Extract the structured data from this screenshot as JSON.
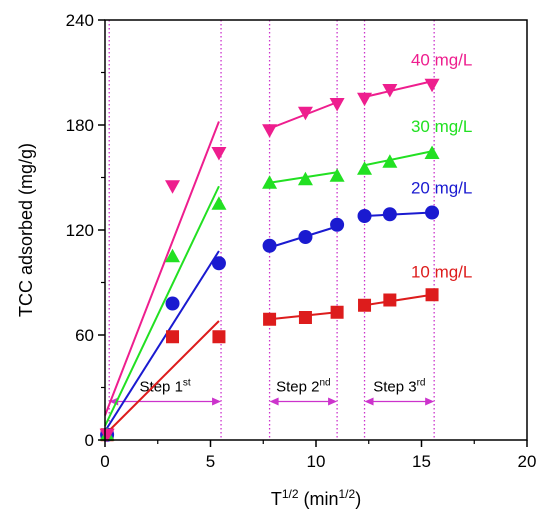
{
  "chart_data": {
    "type": "scatter",
    "xlabel": "T",
    "xlabel_sup": "1/2",
    "xlabel_unit": "(min",
    "xlabel_unit_sup": "1/2",
    "xlabel_close": ")",
    "ylabel": "TCC adsorbed (mg/g)",
    "xlim": [
      0,
      20
    ],
    "ylim": [
      0,
      240
    ],
    "xticks": [
      0,
      5,
      10,
      15,
      20
    ],
    "yticks": [
      0,
      60,
      120,
      180,
      240
    ],
    "tick_labels": {
      "x": [
        "0",
        "5",
        "10",
        "15",
        "20"
      ],
      "y": [
        "0",
        "60",
        "120",
        "180",
        "240"
      ]
    },
    "vlines": [
      0.2,
      5.5,
      7.8,
      11.0,
      12.3,
      15.6
    ],
    "steps": [
      {
        "label": "Step 1",
        "sup": "st",
        "x0": 0.2,
        "x1": 5.5,
        "y": 22
      },
      {
        "label": "Step 2",
        "sup": "nd",
        "x0": 7.8,
        "x1": 11.0,
        "y": 22
      },
      {
        "label": "Step 3",
        "sup": "rd",
        "x0": 12.3,
        "x1": 15.6,
        "y": 22
      }
    ],
    "colors": {
      "10mgL": "#dd1c1c",
      "20mgL": "#1a1ad0",
      "30mgL": "#22e022",
      "40mgL": "#ee1e8e",
      "guide": "#cc33cc",
      "arrow": "#cc33cc"
    },
    "series": [
      {
        "name": "10 mg/L",
        "color_key": "10mgL",
        "marker": "square",
        "points": [
          [
            0.1,
            3
          ],
          [
            3.2,
            59
          ],
          [
            5.4,
            59
          ],
          [
            7.8,
            69
          ],
          [
            9.5,
            70
          ],
          [
            11.0,
            73
          ],
          [
            12.3,
            77
          ],
          [
            13.5,
            80
          ],
          [
            15.5,
            83
          ]
        ],
        "fits": [
          [
            [
              0,
              3
            ],
            [
              5.4,
              68
            ]
          ],
          [
            [
              7.8,
              69
            ],
            [
              11.0,
              73
            ]
          ],
          [
            [
              12.3,
              77
            ],
            [
              15.5,
              83
            ]
          ]
        ],
        "label_pos": [
          14.5,
          93
        ]
      },
      {
        "name": "20 mg/L",
        "color_key": "20mgL",
        "marker": "circle",
        "points": [
          [
            0.1,
            3
          ],
          [
            3.2,
            78
          ],
          [
            5.4,
            101
          ],
          [
            7.8,
            111
          ],
          [
            9.5,
            116
          ],
          [
            11.0,
            123
          ],
          [
            12.3,
            128
          ],
          [
            13.5,
            129
          ],
          [
            15.5,
            130
          ]
        ],
        "fits": [
          [
            [
              0,
              5
            ],
            [
              5.4,
              108
            ]
          ],
          [
            [
              7.8,
              110
            ],
            [
              11.0,
              122
            ]
          ],
          [
            [
              12.3,
              128
            ],
            [
              15.5,
              130
            ]
          ]
        ],
        "label_pos": [
          14.5,
          141
        ]
      },
      {
        "name": "30 mg/L",
        "color_key": "30mgL",
        "marker": "triangle-up",
        "points": [
          [
            0.1,
            3
          ],
          [
            3.2,
            105
          ],
          [
            5.4,
            135
          ],
          [
            7.8,
            147
          ],
          [
            9.5,
            149
          ],
          [
            11.0,
            151
          ],
          [
            12.3,
            155
          ],
          [
            13.5,
            159
          ],
          [
            15.5,
            164
          ]
        ],
        "fits": [
          [
            [
              0,
              8
            ],
            [
              5.4,
              145
            ]
          ],
          [
            [
              7.8,
              147
            ],
            [
              11.0,
              153
            ]
          ],
          [
            [
              12.3,
              157
            ],
            [
              15.5,
              165
            ]
          ]
        ],
        "label_pos": [
          14.5,
          176
        ]
      },
      {
        "name": "40 mg/L",
        "color_key": "40mgL",
        "marker": "triangle-down",
        "points": [
          [
            0.1,
            3
          ],
          [
            3.2,
            145
          ],
          [
            5.4,
            164
          ],
          [
            7.8,
            177
          ],
          [
            9.5,
            187
          ],
          [
            11.0,
            192
          ],
          [
            12.3,
            195
          ],
          [
            13.5,
            200
          ],
          [
            15.5,
            203
          ]
        ],
        "fits": [
          [
            [
              0,
              14
            ],
            [
              5.4,
              182
            ]
          ],
          [
            [
              7.8,
              178
            ],
            [
              11.0,
              193
            ]
          ],
          [
            [
              12.3,
              196
            ],
            [
              15.5,
              205
            ]
          ]
        ],
        "label_pos": [
          14.5,
          214
        ]
      }
    ]
  }
}
